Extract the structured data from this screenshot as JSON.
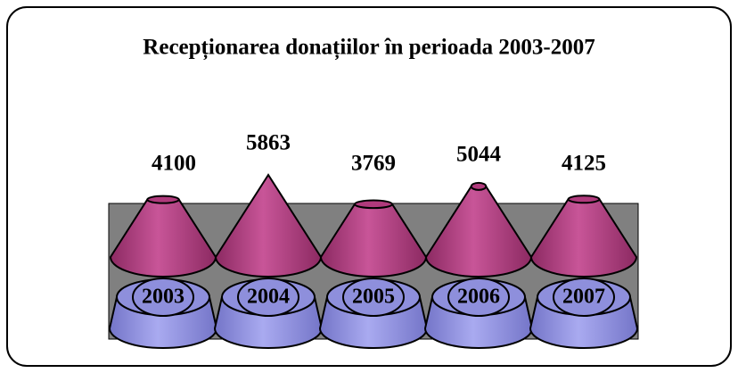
{
  "chart_data": {
    "type": "cone",
    "title": "Recepționarea donațiilor în perioada 2003-2007",
    "categories": [
      "2003",
      "2004",
      "2005",
      "2006",
      "2007"
    ],
    "values": [
      4100,
      5863,
      3769,
      5044,
      4125
    ],
    "color": "#b03a7c",
    "base_color": "#8e8fdc",
    "background_color": "#808080"
  }
}
